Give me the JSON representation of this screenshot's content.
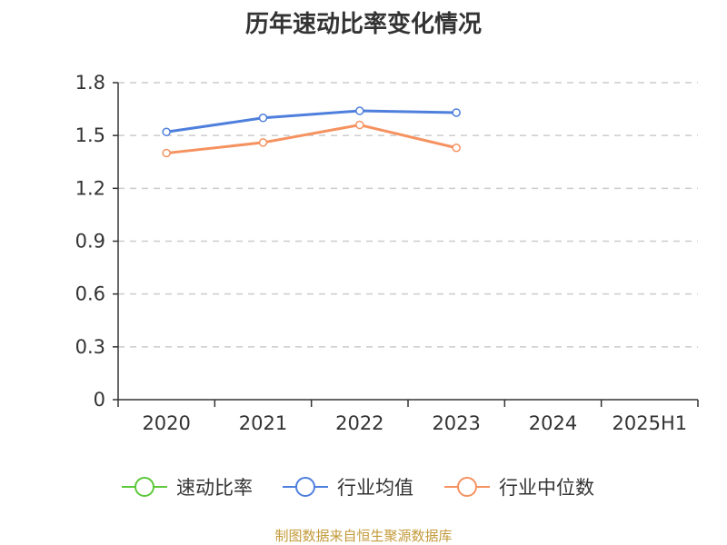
{
  "chart_data": {
    "type": "line",
    "title": "历年速动比率变化情况",
    "categories": [
      "2020",
      "2021",
      "2022",
      "2023",
      "2024",
      "2025H1"
    ],
    "yticks": [
      "0",
      "0.3",
      "0.6",
      "0.9",
      "1.2",
      "1.5",
      "1.8"
    ],
    "ylim": [
      0,
      1.8
    ],
    "grid": true,
    "legend_position": "bottom",
    "series": [
      {
        "name": "速动比率",
        "color": "#5cc83a",
        "values": [
          null,
          null,
          null,
          null,
          null,
          null
        ]
      },
      {
        "name": "行业均值",
        "color": "#4f7fdc",
        "values": [
          1.52,
          1.6,
          1.64,
          1.63,
          null,
          null
        ]
      },
      {
        "name": "行业中位数",
        "color": "#f59260",
        "values": [
          1.4,
          1.46,
          1.56,
          1.43,
          null,
          null
        ]
      }
    ]
  },
  "footer": {
    "source": "制图数据来自恒生聚源数据库"
  }
}
